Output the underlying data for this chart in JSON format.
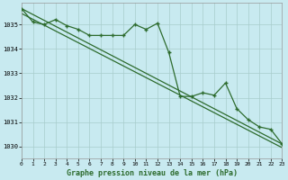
{
  "title": "Graphe pression niveau de la mer (hPa)",
  "background_color": "#c8eaf0",
  "grid_color": "#a8cccc",
  "line_color": "#2d6b2d",
  "xlim": [
    0,
    23
  ],
  "ylim": [
    1029.5,
    1035.9
  ],
  "yticks": [
    1030,
    1031,
    1032,
    1033,
    1034,
    1035
  ],
  "xticks": [
    0,
    1,
    2,
    3,
    4,
    5,
    6,
    7,
    8,
    9,
    10,
    11,
    12,
    13,
    14,
    15,
    16,
    17,
    18,
    19,
    20,
    21,
    22,
    23
  ],
  "series_x": [
    0,
    1,
    2,
    3,
    4,
    5,
    6,
    7,
    8,
    9,
    10,
    11,
    12,
    13,
    14,
    15,
    16,
    17,
    18,
    19,
    20,
    21,
    22,
    23
  ],
  "series_y": [
    1035.65,
    1035.1,
    1035.0,
    1035.2,
    1034.95,
    1034.8,
    1034.55,
    1034.55,
    1034.55,
    1034.55,
    1035.0,
    1034.8,
    1035.05,
    1033.85,
    1032.05,
    1032.05,
    1032.2,
    1032.1,
    1032.6,
    1031.55,
    1031.1,
    1030.8,
    1030.7,
    1030.1
  ],
  "line1_x": [
    0,
    23
  ],
  "line1_y": [
    1035.65,
    1030.1
  ],
  "line2_x": [
    0,
    23
  ],
  "line2_y": [
    1035.45,
    1029.95
  ]
}
